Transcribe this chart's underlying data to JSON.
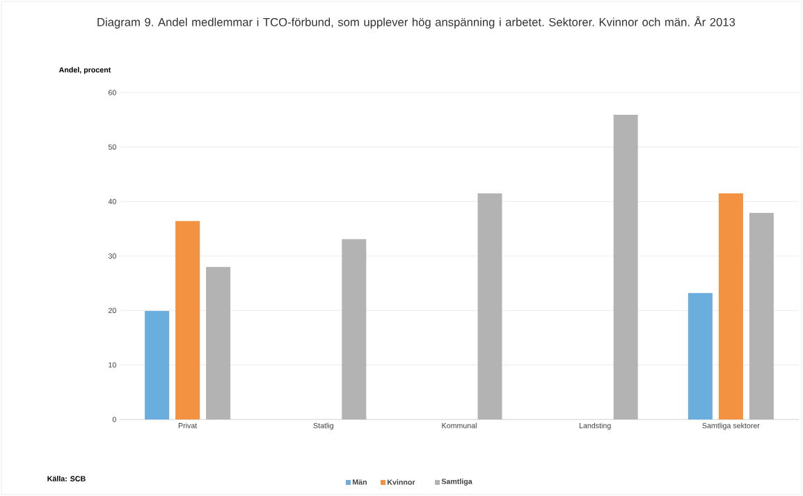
{
  "chart_data": {
    "type": "bar",
    "title": "Diagram 9. Andel medlemmar i TCO-förbund, som upplever hög anspänning i arbetet. Sektorer. Kvinnor och män. År 2013",
    "ylabel": "Andel, procent",
    "categories": [
      "Privat",
      "Statlig",
      "Kommunal",
      "Landsting",
      "Samtliga sektorer"
    ],
    "series": [
      {
        "name": "Män",
        "color": "#6aaede",
        "values": [
          19.9,
          null,
          null,
          null,
          23.2
        ]
      },
      {
        "name": "Kvinnor",
        "color": "#f39240",
        "values": [
          36.4,
          null,
          null,
          null,
          41.5
        ]
      },
      {
        "name": "Samtliga",
        "color": "#b3b3b3",
        "values": [
          28.0,
          33.1,
          41.5,
          55.9,
          37.9
        ]
      }
    ],
    "ylim": [
      0,
      60
    ],
    "yticks": [
      0,
      10,
      20,
      30,
      40,
      50,
      60
    ],
    "grid": "y",
    "legend": "bottom",
    "annotations": [
      "Källa: SCB"
    ]
  }
}
